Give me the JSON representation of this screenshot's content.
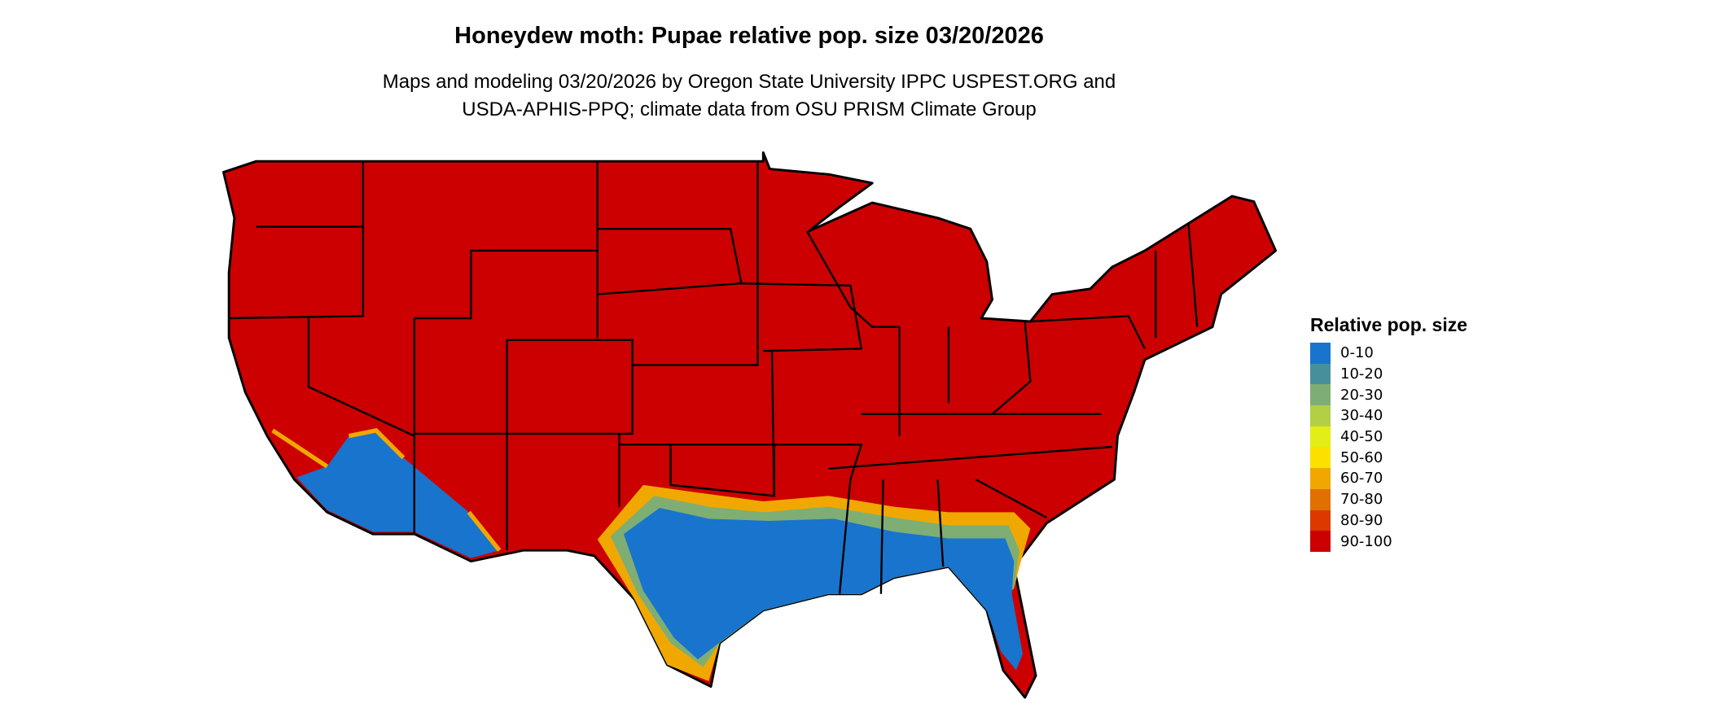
{
  "title": "Honeydew moth: Pupae relative pop. size 03/20/2026",
  "subtitle_line1": "Maps and modeling 03/20/2026 by Oregon State University IPPC USPEST.ORG and",
  "subtitle_line2": "USDA-APHIS-PPQ; climate data from OSU PRISM Climate Group",
  "legend": {
    "title": "Relative pop. size",
    "items": [
      {
        "label": "0-10",
        "color": "#1874cd"
      },
      {
        "label": "10-20",
        "color": "#488f9c"
      },
      {
        "label": "20-30",
        "color": "#7fae74"
      },
      {
        "label": "30-40",
        "color": "#b2cf45"
      },
      {
        "label": "40-50",
        "color": "#e2ee15"
      },
      {
        "label": "50-60",
        "color": "#fae100"
      },
      {
        "label": "60-70",
        "color": "#f0a800"
      },
      {
        "label": "70-80",
        "color": "#e07000"
      },
      {
        "label": "80-90",
        "color": "#dc3800"
      },
      {
        "label": "90-100",
        "color": "#cc0000"
      }
    ]
  },
  "map": {
    "region": "Contiguous United States",
    "dominant_class": "90-100",
    "southern_class": "0-10"
  }
}
